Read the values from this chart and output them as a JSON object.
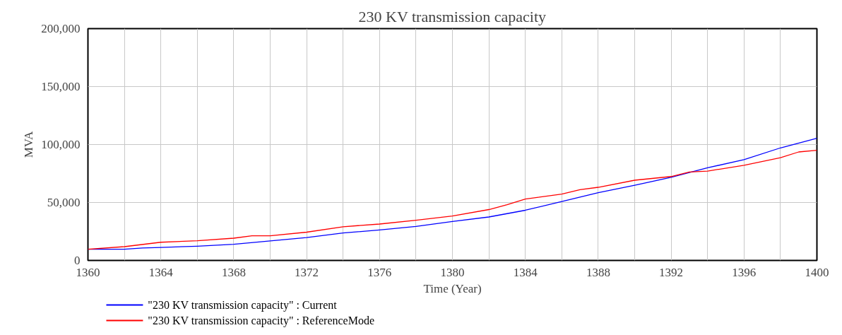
{
  "chart_data": {
    "type": "line",
    "title": "230 KV transmission capacity",
    "xlabel": "Time (Year)",
    "ylabel": "MVA",
    "xlim": [
      1360,
      1400
    ],
    "ylim": [
      0,
      200000
    ],
    "xticks": [
      1360,
      {
        "value": 1362,
        "label": null
      },
      1364,
      {
        "value": 1366,
        "label": null
      },
      1368,
      {
        "value": 1370,
        "label": null
      },
      1372,
      {
        "value": 1374,
        "label": null
      },
      1376,
      {
        "value": 1378,
        "label": null
      },
      1380,
      {
        "value": 1382,
        "label": null
      },
      1384,
      {
        "value": 1386,
        "label": null
      },
      1388,
      {
        "value": 1390,
        "label": null
      },
      1392,
      {
        "value": 1394,
        "label": null
      },
      1396,
      {
        "value": 1398,
        "label": null
      },
      1400
    ],
    "yticks": [
      {
        "value": 0,
        "label": "0"
      },
      {
        "value": 50000,
        "label": "50,000"
      },
      {
        "value": 100000,
        "label": "100,000"
      },
      {
        "value": 150000,
        "label": "150,000"
      },
      {
        "value": 200000,
        "label": "200,000"
      }
    ],
    "grid": true,
    "legend": "bottom",
    "series": [
      {
        "name": "\"230 KV transmission capacity\" : Current",
        "color": "#0000ff",
        "x": [
          1360,
          1362,
          1363,
          1364,
          1366,
          1368,
          1370,
          1372,
          1374,
          1376,
          1378,
          1380,
          1382,
          1384,
          1386,
          1388,
          1390,
          1392,
          1394,
          1396,
          1398,
          1400
        ],
        "values": [
          9700,
          9700,
          10700,
          11200,
          12300,
          14000,
          16800,
          19800,
          23700,
          26300,
          29300,
          33600,
          37500,
          43300,
          50900,
          58400,
          64900,
          71700,
          79900,
          87000,
          97100,
          105400
        ]
      },
      {
        "name": "\"230 KV transmission capacity\" : ReferenceMode",
        "color": "#ff0000",
        "x": [
          1360,
          1362,
          1364,
          1366,
          1368,
          1369,
          1370,
          1372,
          1374,
          1376,
          1378,
          1380,
          1382,
          1383,
          1384,
          1386,
          1387,
          1388,
          1390,
          1392,
          1393,
          1394,
          1396,
          1398,
          1399,
          1400
        ],
        "values": [
          9700,
          11900,
          15700,
          17000,
          19200,
          21300,
          21300,
          24400,
          29100,
          31400,
          34700,
          38300,
          43900,
          48100,
          53000,
          57300,
          61000,
          63100,
          69200,
          72400,
          76300,
          77100,
          82100,
          88600,
          93600,
          95100
        ]
      }
    ]
  }
}
